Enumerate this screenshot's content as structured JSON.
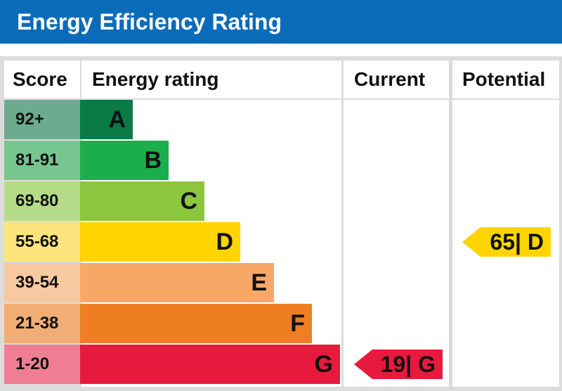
{
  "title": "Energy Efficiency Rating",
  "columns": {
    "score": "Score",
    "energy_rating": "Energy rating",
    "current": "Current",
    "potential": "Potential"
  },
  "chart_data": {
    "type": "bar",
    "title": "Energy Efficiency Rating",
    "bands": [
      {
        "range": "92+",
        "letter": "A",
        "color": "#6daa8f",
        "bar_color": "#0a7a47"
      },
      {
        "range": "81-91",
        "letter": "B",
        "color": "#77c68f",
        "bar_color": "#1cae4e"
      },
      {
        "range": "69-80",
        "letter": "C",
        "color": "#b4dc88",
        "bar_color": "#8cc63f"
      },
      {
        "range": "55-68",
        "letter": "D",
        "color": "#fde47c",
        "bar_color": "#ffd400"
      },
      {
        "range": "39-54",
        "letter": "E",
        "color": "#f8c9a0",
        "bar_color": "#f8a866"
      },
      {
        "range": "21-38",
        "letter": "F",
        "color": "#f1ad74",
        "bar_color": "#ef7e22"
      },
      {
        "range": "1-20",
        "letter": "G",
        "color": "#ef7e94",
        "bar_color": "#e71a3e"
      }
    ],
    "current": {
      "value": 19,
      "letter": "G",
      "label": "19| G",
      "color": "#e71a3e"
    },
    "potential": {
      "value": 65,
      "letter": "D",
      "label": "65| D",
      "color": "#ffd400"
    }
  }
}
